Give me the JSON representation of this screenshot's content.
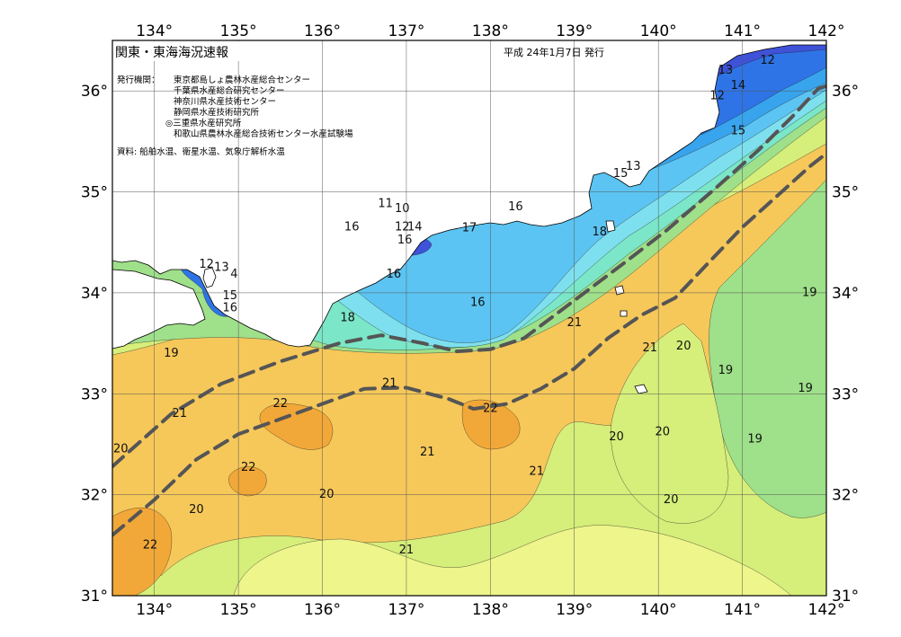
{
  "map": {
    "title": "関東・東海海況速報",
    "date": "平成 24年1月7日 発行",
    "issuers_label": "発行機関：",
    "issuers": [
      "東京都島しょ農林水産総合センター",
      "千葉県水産総合研究センター",
      "神奈川県水産技術センター",
      "静岡県水産技術研究所",
      "◎三重県水産研究所",
      "和歌山県農林水産総合技術センター水産試験場"
    ],
    "source": "資料: 船舶水温、衛星水温、気象庁解析水温",
    "lon_ticks": [
      "134°",
      "135°",
      "136°",
      "137°",
      "138°",
      "139°",
      "140°",
      "141°",
      "142°"
    ],
    "lat_ticks": [
      "36°",
      "35°",
      "34°",
      "33°",
      "32°",
      "31°"
    ],
    "lon_range": [
      133.5,
      142
    ],
    "lat_range": [
      31,
      36.5
    ],
    "colors": {
      "t12": "#5b3fc4",
      "t13": "#3f52d8",
      "t14": "#2f74e6",
      "t15": "#38a4ee",
      "t16": "#5cc4f2",
      "t17": "#7ee0ee",
      "t18": "#7be6c8",
      "t19": "#9fe08a",
      "t20": "#d6ee7a",
      "t20b": "#eef58a",
      "t21": "#f6c85a",
      "t22": "#f2a838",
      "land": "#ffffff",
      "kuroshio": "#555555"
    }
  },
  "chart_data": {
    "type": "sea-surface-temperature-map",
    "x_unit": "longitude (°E)",
    "y_unit": "latitude (°N)",
    "isotherm_labels": [
      {
        "text": "12",
        "lon": 141.3,
        "lat": 36.3
      },
      {
        "text": "13",
        "lon": 140.8,
        "lat": 36.2
      },
      {
        "text": "14",
        "lon": 140.95,
        "lat": 36.05
      },
      {
        "text": "12",
        "lon": 140.7,
        "lat": 35.95
      },
      {
        "text": "15",
        "lon": 140.95,
        "lat": 35.6
      },
      {
        "text": "13",
        "lon": 139.7,
        "lat": 35.25
      },
      {
        "text": "15",
        "lon": 139.55,
        "lat": 35.18
      },
      {
        "text": "11",
        "lon": 136.75,
        "lat": 34.88
      },
      {
        "text": "10",
        "lon": 136.95,
        "lat": 34.83
      },
      {
        "text": "16",
        "lon": 138.3,
        "lat": 34.85
      },
      {
        "text": "18",
        "lon": 139.3,
        "lat": 34.6
      },
      {
        "text": "17",
        "lon": 137.75,
        "lat": 34.64
      },
      {
        "text": "12",
        "lon": 136.95,
        "lat": 34.65
      },
      {
        "text": "14",
        "lon": 137.1,
        "lat": 34.65
      },
      {
        "text": "16",
        "lon": 136.98,
        "lat": 34.52
      },
      {
        "text": "16",
        "lon": 136.35,
        "lat": 34.65
      },
      {
        "text": "16",
        "lon": 136.85,
        "lat": 34.18
      },
      {
        "text": "12",
        "lon": 134.62,
        "lat": 34.28
      },
      {
        "text": "13",
        "lon": 134.8,
        "lat": 34.25
      },
      {
        "text": "4",
        "lon": 134.95,
        "lat": 34.18
      },
      {
        "text": "15",
        "lon": 134.9,
        "lat": 33.97
      },
      {
        "text": "16",
        "lon": 134.9,
        "lat": 33.85
      },
      {
        "text": "16",
        "lon": 137.85,
        "lat": 33.9
      },
      {
        "text": "18",
        "lon": 136.3,
        "lat": 33.75
      },
      {
        "text": "19",
        "lon": 141.8,
        "lat": 34.0
      },
      {
        "text": "21",
        "lon": 139.0,
        "lat": 33.7
      },
      {
        "text": "19",
        "lon": 134.2,
        "lat": 33.4
      },
      {
        "text": "21",
        "lon": 139.9,
        "lat": 33.45
      },
      {
        "text": "20",
        "lon": 140.3,
        "lat": 33.47
      },
      {
        "text": "19",
        "lon": 140.8,
        "lat": 33.23
      },
      {
        "text": "21",
        "lon": 136.8,
        "lat": 33.1
      },
      {
        "text": "19",
        "lon": 141.75,
        "lat": 33.05
      },
      {
        "text": "22",
        "lon": 135.5,
        "lat": 32.9
      },
      {
        "text": "22",
        "lon": 138.0,
        "lat": 32.85
      },
      {
        "text": "21",
        "lon": 134.3,
        "lat": 32.8
      },
      {
        "text": "20",
        "lon": 140.05,
        "lat": 32.62
      },
      {
        "text": "20",
        "lon": 139.5,
        "lat": 32.57
      },
      {
        "text": "19",
        "lon": 141.15,
        "lat": 32.55
      },
      {
        "text": "20",
        "lon": 133.6,
        "lat": 32.45
      },
      {
        "text": "21",
        "lon": 137.25,
        "lat": 32.42
      },
      {
        "text": "22",
        "lon": 135.12,
        "lat": 32.27
      },
      {
        "text": "21",
        "lon": 138.55,
        "lat": 32.23
      },
      {
        "text": "20",
        "lon": 136.05,
        "lat": 32.0
      },
      {
        "text": "20",
        "lon": 140.15,
        "lat": 31.95
      },
      {
        "text": "20",
        "lon": 134.5,
        "lat": 31.85
      },
      {
        "text": "22",
        "lon": 133.95,
        "lat": 31.5
      },
      {
        "text": "21",
        "lon": 137.0,
        "lat": 31.45
      }
    ],
    "kuroshio_paths": [
      {
        "points": [
          [
            133.5,
            32.28
          ],
          [
            134.2,
            32.8
          ],
          [
            134.8,
            33.1
          ],
          [
            135.5,
            33.32
          ],
          [
            136.2,
            33.5
          ],
          [
            136.7,
            33.58
          ],
          [
            137.2,
            33.5
          ],
          [
            137.6,
            33.42
          ],
          [
            138.0,
            33.44
          ],
          [
            138.4,
            33.55
          ],
          [
            138.8,
            33.8
          ],
          [
            139.2,
            34.05
          ],
          [
            139.6,
            34.3
          ],
          [
            140.1,
            34.62
          ],
          [
            140.7,
            35.05
          ],
          [
            141.2,
            35.42
          ],
          [
            141.6,
            35.75
          ],
          [
            141.9,
            36.02
          ],
          [
            142.0,
            36.05
          ]
        ]
      },
      {
        "points": [
          [
            133.5,
            31.6
          ],
          [
            134.0,
            31.95
          ],
          [
            134.5,
            32.35
          ],
          [
            135.0,
            32.6
          ],
          [
            135.5,
            32.75
          ],
          [
            136.0,
            32.9
          ],
          [
            136.5,
            33.05
          ],
          [
            137.0,
            33.06
          ],
          [
            137.5,
            32.95
          ],
          [
            137.8,
            32.85
          ],
          [
            138.2,
            32.9
          ],
          [
            138.6,
            33.05
          ],
          [
            139.0,
            33.25
          ],
          [
            139.4,
            33.55
          ],
          [
            139.8,
            33.78
          ],
          [
            140.2,
            33.95
          ],
          [
            140.6,
            34.3
          ],
          [
            141.0,
            34.65
          ],
          [
            141.4,
            34.95
          ],
          [
            141.8,
            35.25
          ],
          [
            142.0,
            35.38
          ]
        ]
      }
    ]
  }
}
